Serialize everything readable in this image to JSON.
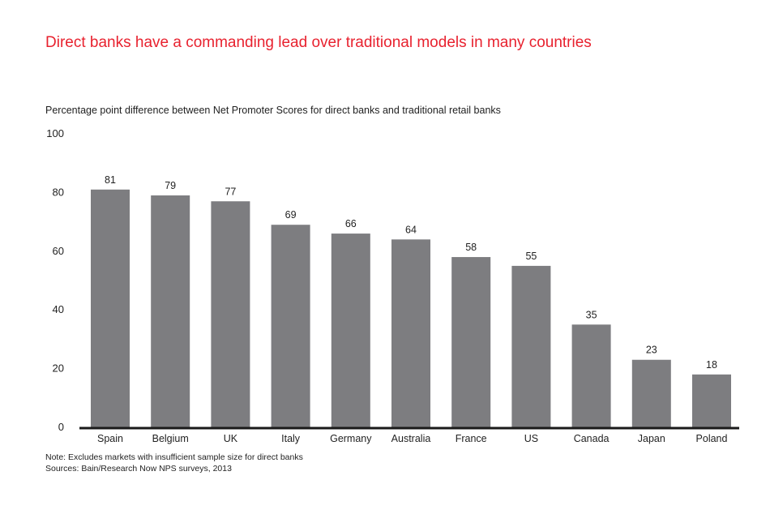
{
  "title": "Direct banks have a commanding lead over traditional models in many countries",
  "subtitle": "Percentage point difference between Net Promoter Scores for direct banks and traditional retail banks",
  "notes": {
    "note": "Note: Excludes markets with insufficient sample size for direct banks",
    "sources": "Sources: Bain/Research Now NPS surveys, 2013"
  },
  "colors": {
    "title": "#e8222f",
    "bar": "#7d7d80",
    "axis": "#1a1a1a",
    "text": "#222222"
  },
  "chart_data": {
    "type": "bar",
    "title": "Direct banks have a commanding lead over traditional models in many countries",
    "ylabel": "Percentage point difference between Net Promoter Scores for direct banks and traditional retail banks",
    "xlabel": "",
    "categories": [
      "Spain",
      "Belgium",
      "UK",
      "Italy",
      "Germany",
      "Australia",
      "France",
      "US",
      "Canada",
      "Japan",
      "Poland"
    ],
    "values": [
      81,
      79,
      77,
      69,
      66,
      64,
      58,
      55,
      35,
      23,
      18
    ],
    "ylim": [
      0,
      100
    ],
    "yticks": [
      0,
      20,
      40,
      60,
      80,
      100
    ],
    "grid": false,
    "data_labels": true
  }
}
